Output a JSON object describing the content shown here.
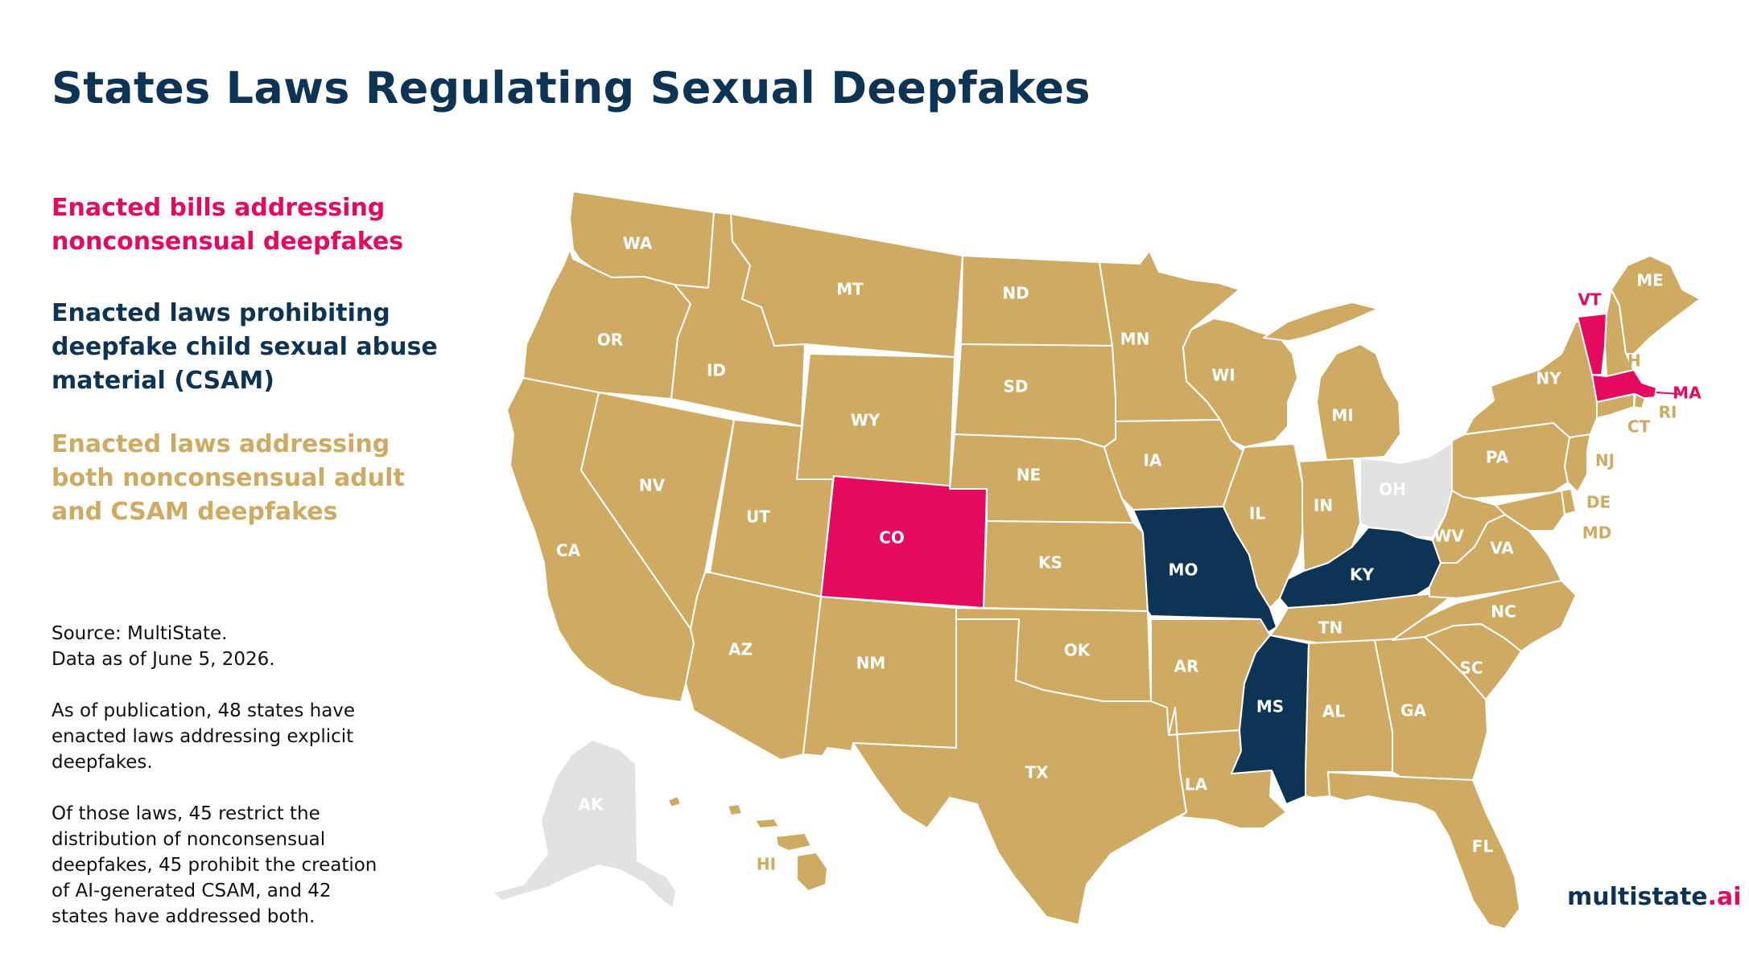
{
  "title": "States Laws Regulating Sexual Deepfakes",
  "colors": {
    "nonconsensual": "#e5095f",
    "csam": "#0d3454",
    "both": "#ceaa62",
    "none": "#e2e2e2"
  },
  "legend": [
    {
      "key": "nonconsensual",
      "color": "#e5095f",
      "lines": [
        "Enacted bills addressing",
        "nonconsensual deepfakes"
      ]
    },
    {
      "key": "csam",
      "color": "#0d3454",
      "lines": [
        "Enacted laws prohibiting",
        "deepfake child sexual abuse",
        "material (CSAM)"
      ]
    },
    {
      "key": "both",
      "color": "#ceaa62",
      "lines": [
        "Enacted laws addressing",
        "both nonconsensual adult",
        "and CSAM deepfakes"
      ]
    }
  ],
  "notes": {
    "source": [
      "Source: MultiState.",
      "Data as of June 5, 2026."
    ],
    "paragraph1": [
      "As of publication, 48 states have",
      "enacted laws addressing explicit",
      "deepfakes."
    ],
    "paragraph2": [
      "Of those laws, 45 restrict the",
      "distribution of nonconsensual",
      "deepfakes, 45 prohibit the creation",
      "of AI-generated CSAM, and 42",
      "states have addressed both."
    ]
  },
  "brand": {
    "name": "multistate",
    "tld": ".ai"
  },
  "states": [
    {
      "abbr": "WA",
      "category": "both"
    },
    {
      "abbr": "OR",
      "category": "both"
    },
    {
      "abbr": "CA",
      "category": "both"
    },
    {
      "abbr": "ID",
      "category": "both"
    },
    {
      "abbr": "NV",
      "category": "both"
    },
    {
      "abbr": "MT",
      "category": "both"
    },
    {
      "abbr": "WY",
      "category": "both"
    },
    {
      "abbr": "UT",
      "category": "both"
    },
    {
      "abbr": "AZ",
      "category": "both"
    },
    {
      "abbr": "CO",
      "category": "nonconsensual"
    },
    {
      "abbr": "NM",
      "category": "both"
    },
    {
      "abbr": "ND",
      "category": "both"
    },
    {
      "abbr": "SD",
      "category": "both"
    },
    {
      "abbr": "NE",
      "category": "both"
    },
    {
      "abbr": "KS",
      "category": "both"
    },
    {
      "abbr": "OK",
      "category": "both"
    },
    {
      "abbr": "TX",
      "category": "both"
    },
    {
      "abbr": "MN",
      "category": "both"
    },
    {
      "abbr": "IA",
      "category": "both"
    },
    {
      "abbr": "MO",
      "category": "csam"
    },
    {
      "abbr": "AR",
      "category": "both"
    },
    {
      "abbr": "LA",
      "category": "both"
    },
    {
      "abbr": "WI",
      "category": "both"
    },
    {
      "abbr": "IL",
      "category": "both"
    },
    {
      "abbr": "MI",
      "category": "both"
    },
    {
      "abbr": "IN",
      "category": "both"
    },
    {
      "abbr": "OH",
      "category": "none"
    },
    {
      "abbr": "KY",
      "category": "csam"
    },
    {
      "abbr": "TN",
      "category": "both"
    },
    {
      "abbr": "MS",
      "category": "csam"
    },
    {
      "abbr": "AL",
      "category": "both"
    },
    {
      "abbr": "GA",
      "category": "both"
    },
    {
      "abbr": "FL",
      "category": "both"
    },
    {
      "abbr": "SC",
      "category": "both"
    },
    {
      "abbr": "NC",
      "category": "both"
    },
    {
      "abbr": "VA",
      "category": "both"
    },
    {
      "abbr": "WV",
      "category": "both"
    },
    {
      "abbr": "PA",
      "category": "both"
    },
    {
      "abbr": "NY",
      "category": "both"
    },
    {
      "abbr": "VT",
      "category": "nonconsensual"
    },
    {
      "abbr": "NH",
      "category": "both"
    },
    {
      "abbr": "ME",
      "category": "both"
    },
    {
      "abbr": "MA",
      "category": "nonconsensual"
    },
    {
      "abbr": "RI",
      "category": "both"
    },
    {
      "abbr": "CT",
      "category": "both"
    },
    {
      "abbr": "NJ",
      "category": "both"
    },
    {
      "abbr": "DE",
      "category": "both"
    },
    {
      "abbr": "MD",
      "category": "both"
    },
    {
      "abbr": "AK",
      "category": "none"
    },
    {
      "abbr": "HI",
      "category": "both"
    }
  ]
}
